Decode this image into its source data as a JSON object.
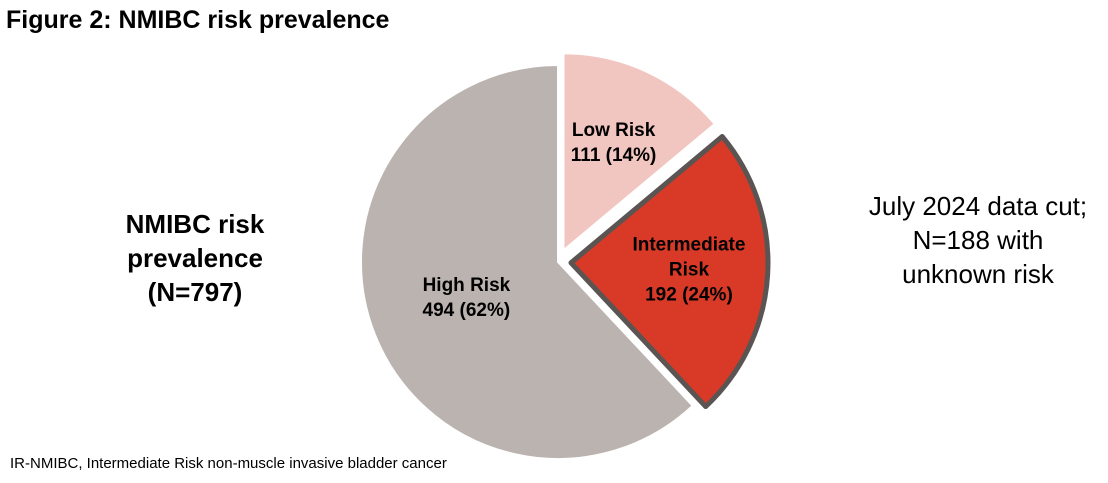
{
  "chart_data": {
    "type": "pie",
    "title": "Figure 2: NMIBC risk prevalence",
    "categories": [
      "Low Risk",
      "Intermediate Risk",
      "High Risk"
    ],
    "values": [
      111,
      192,
      494
    ],
    "value_labels": [
      "111 (14%)",
      "192 (24%)",
      "494 (62%)"
    ],
    "colors": [
      "#f2c6c0",
      "#d83a27",
      "#bbb3af"
    ],
    "label_colors": [
      "#000000",
      "#000000",
      "#000000"
    ],
    "exploded": [
      true,
      true,
      false
    ],
    "highlight": [
      false,
      true,
      false
    ],
    "annotations": [
      "NMIBC risk prevalence (N=797)",
      "July 2024 data cut; N=188 with unknown risk"
    ],
    "footnote": "IR-NMIBC, Intermediate Risk non-muscle invasive bladder cancer"
  }
}
